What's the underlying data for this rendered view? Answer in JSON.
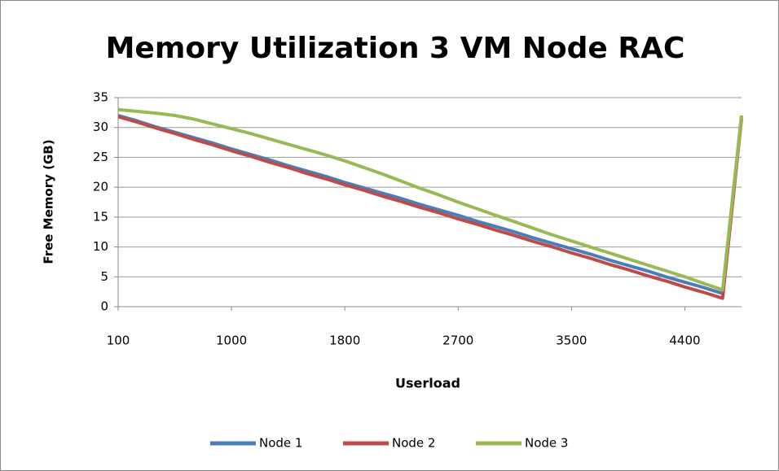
{
  "chart_data": {
    "type": "line",
    "title": "Memory Utilization 3 VM Node RAC",
    "x_label": "Userload",
    "y_label": "Free Memory (GB)",
    "categories": [
      100,
      null,
      null,
      null,
      null,
      null,
      1000,
      null,
      null,
      null,
      null,
      null,
      1800,
      null,
      null,
      null,
      null,
      null,
      2700,
      null,
      null,
      null,
      null,
      null,
      3500,
      null,
      null,
      null,
      null,
      null,
      4400,
      null,
      null,
      null
    ],
    "series": [
      {
        "name": "Node 1",
        "color": "#4a7ebb",
        "values": [
          32,
          31.1,
          30.1,
          29.2,
          28.3,
          27.4,
          26.4,
          25.5,
          24.6,
          23.6,
          22.7,
          21.8,
          20.8,
          19.9,
          19,
          18.1,
          17.1,
          16.2,
          15.3,
          14.3,
          13.4,
          12.5,
          11.5,
          10.6,
          9.7,
          8.8,
          7.8,
          6.9,
          6,
          5,
          4.1,
          3.2,
          2.2,
          32
        ]
      },
      {
        "name": "Node 2",
        "color": "#be4b48",
        "values": [
          31.8,
          30.9,
          29.9,
          29,
          28,
          27.1,
          26.1,
          25.2,
          24.2,
          23.3,
          22.3,
          21.4,
          20.4,
          19.5,
          18.5,
          17.6,
          16.6,
          15.7,
          14.7,
          13.8,
          12.8,
          11.9,
          10.9,
          10,
          9,
          8.1,
          7.1,
          6.2,
          5.2,
          4.3,
          3.3,
          2.4,
          1.4,
          31.5
        ]
      },
      {
        "name": "Node 3",
        "color": "#98b954",
        "values": [
          33,
          32.7,
          32.4,
          32,
          31.4,
          30.6,
          29.8,
          29,
          28.1,
          27.2,
          26.3,
          25.4,
          24.4,
          23.3,
          22.2,
          21,
          19.8,
          18.7,
          17.5,
          16.4,
          15.3,
          14.2,
          13.1,
          12,
          11,
          10,
          9,
          8,
          7,
          6,
          5,
          3.9,
          2.8,
          32
        ]
      }
    ],
    "ylim": [
      0,
      35
    ],
    "yticks": [
      0,
      5,
      10,
      15,
      20,
      25,
      30,
      35
    ],
    "grid": true,
    "legend": "bottom"
  }
}
